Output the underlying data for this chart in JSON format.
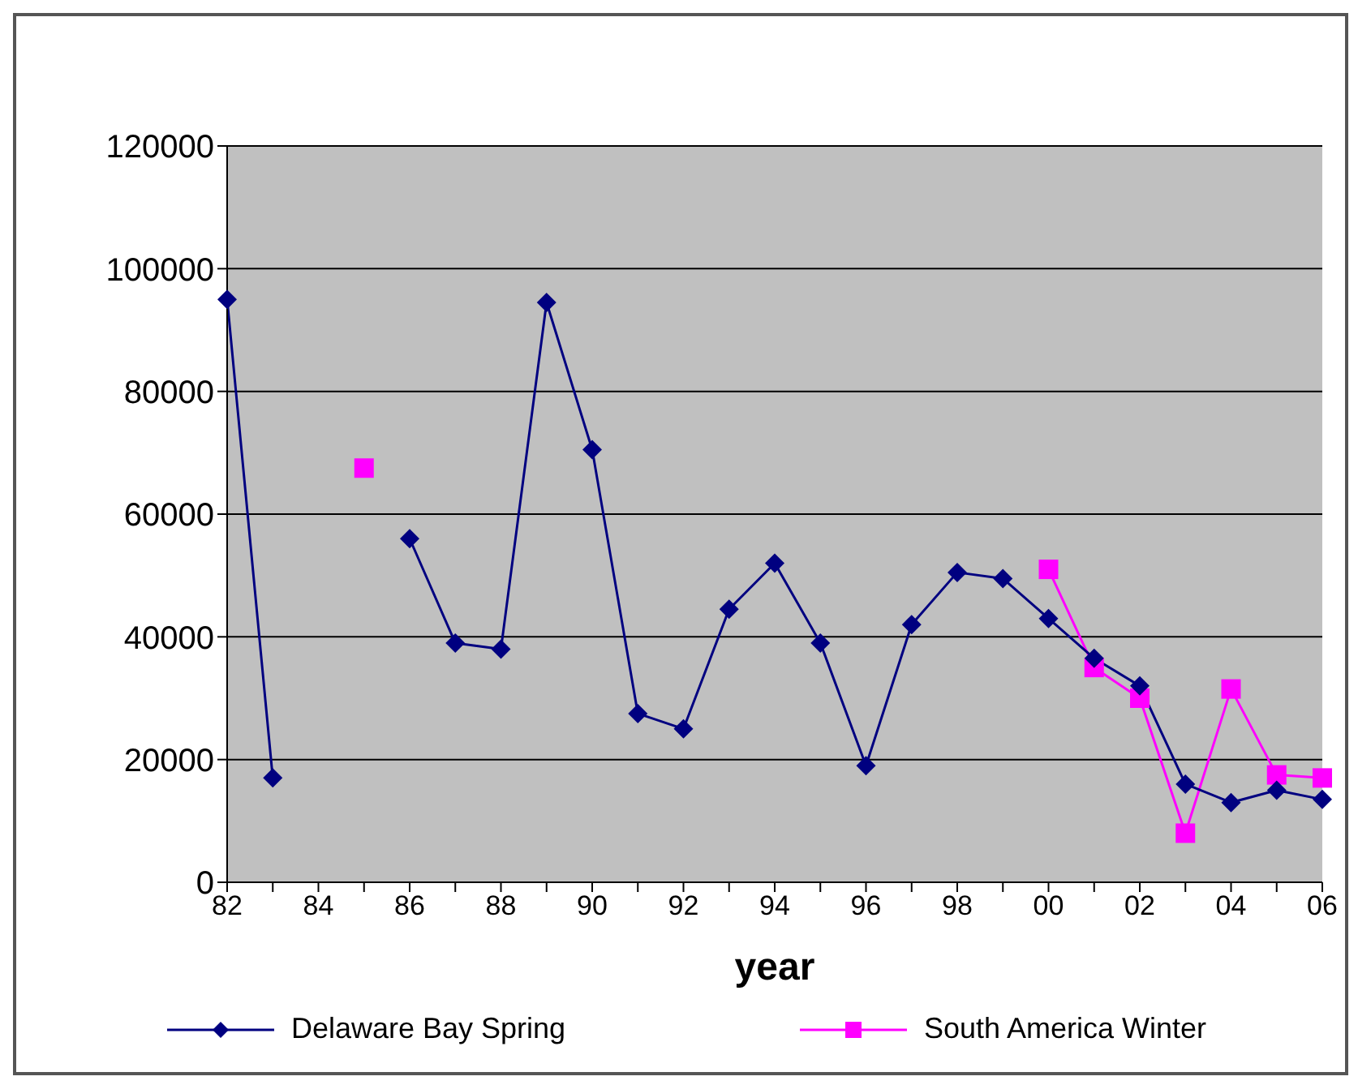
{
  "chart_data": {
    "type": "line",
    "xlabel": "year",
    "categories": [
      "82",
      null,
      "84",
      null,
      "86",
      null,
      "88",
      null,
      "90",
      null,
      "92",
      null,
      "94",
      null,
      "96",
      null,
      "98",
      null,
      "00",
      null,
      "02",
      null,
      "04",
      null,
      "06"
    ],
    "series": [
      {
        "name": "Delaware Bay Spring",
        "color": "#000080",
        "marker": "diamond",
        "values": [
          95000,
          17000,
          null,
          null,
          56000,
          39000,
          38000,
          94500,
          70500,
          27500,
          25000,
          44500,
          52000,
          39000,
          19000,
          42000,
          50500,
          49500,
          43000,
          36500,
          32000,
          16000,
          13000,
          15000,
          13500
        ]
      },
      {
        "name": "South America Winter",
        "color": "#ff00ff",
        "marker": "square",
        "values": [
          null,
          null,
          null,
          67500,
          null,
          null,
          null,
          null,
          null,
          null,
          null,
          null,
          null,
          null,
          null,
          null,
          null,
          null,
          51000,
          35000,
          30000,
          8000,
          31500,
          17500,
          17000
        ]
      }
    ],
    "ylim": [
      0,
      120000
    ],
    "yticks": [
      0,
      20000,
      40000,
      60000,
      80000,
      100000,
      120000
    ],
    "grid": "y",
    "legend": "bottom"
  }
}
